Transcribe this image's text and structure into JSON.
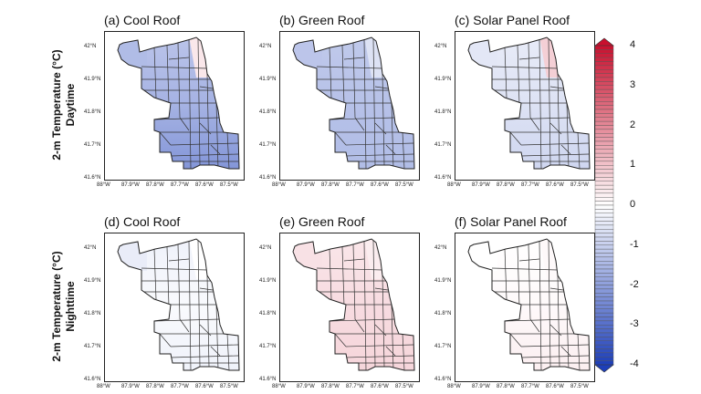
{
  "row_labels": [
    {
      "line1": "2-m Temperature (°C)",
      "line2": "Daytime"
    },
    {
      "line1": "2-m Temperature (°C)",
      "line2": "Nighttime"
    }
  ],
  "panels": [
    {
      "title": "(a) Cool Roof",
      "row": 0,
      "col": 0,
      "north": -1.2,
      "mid": -1.6,
      "south": -2.3,
      "west": -1.4,
      "northeast": 0.4
    },
    {
      "title": "(b) Green Roof",
      "row": 0,
      "col": 1,
      "north": -1.1,
      "mid": -1.3,
      "south": -1.4,
      "west": -1.2,
      "northeast": -0.6
    },
    {
      "title": "(c) Solar Panel Roof",
      "row": 0,
      "col": 2,
      "north": -0.4,
      "mid": -0.6,
      "south": -0.9,
      "west": -0.5,
      "northeast": 0.8
    },
    {
      "title": "(d) Cool Roof",
      "row": 1,
      "col": 0,
      "north": -0.3,
      "mid": -0.1,
      "south": -0.3,
      "west": -0.4,
      "northeast": 0.0
    },
    {
      "title": "(e) Green Roof",
      "row": 1,
      "col": 1,
      "north": 0.4,
      "mid": 0.6,
      "south": 0.7,
      "west": 0.5,
      "northeast": 0.3
    },
    {
      "title": "(f) Solar Panel Roof",
      "row": 1,
      "col": 2,
      "north": 0.0,
      "mid": 0.1,
      "south": 0.3,
      "west": 0.0,
      "northeast": 0.1
    }
  ],
  "lat_ticks": [
    "42°N",
    "41.9°N",
    "41.8°N",
    "41.7°N",
    "41.6°N"
  ],
  "lon_ticks": [
    "88°W",
    "87.9°W",
    "87.8°W",
    "87.7°W",
    "87.6°W",
    "87.5°W"
  ],
  "colorbar": {
    "min": -4,
    "max": 4,
    "ticks": [
      "4",
      "3",
      "2",
      "1",
      "0",
      "-1",
      "-2",
      "-3",
      "-4"
    ],
    "color_low": "#1e3fb8",
    "color_mid": "#ffffff",
    "color_high": "#c8102e"
  }
}
